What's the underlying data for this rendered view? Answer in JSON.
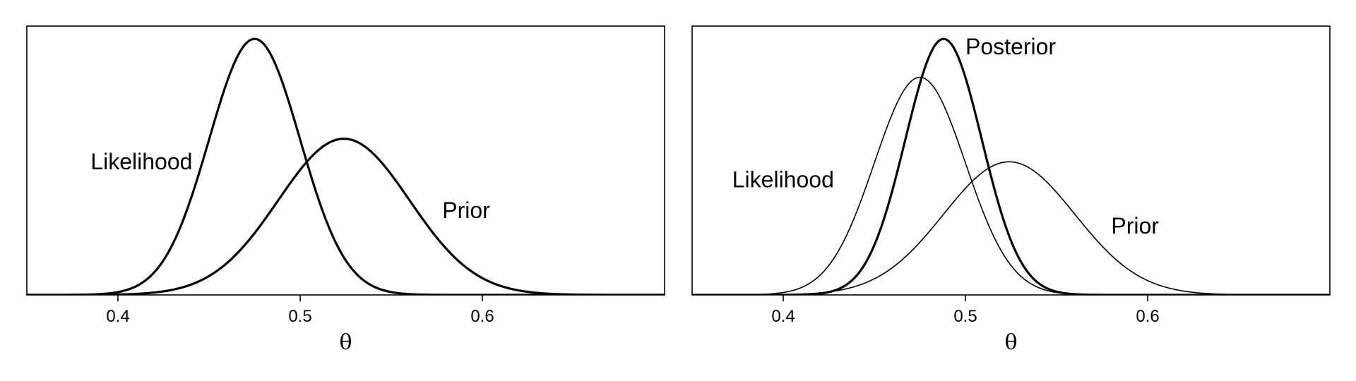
{
  "chart_data": [
    {
      "type": "line",
      "panel": "left",
      "xlabel": "θ",
      "ylabel": "",
      "xlim": [
        0.35,
        0.7
      ],
      "ylim": [
        0,
        1.05
      ],
      "xticks": [
        0.4,
        0.5,
        0.6
      ],
      "xtick_labels": [
        "0.4",
        "0.5",
        "0.6"
      ],
      "series": [
        {
          "name": "Likelihood",
          "distribution": "normal",
          "mean": 0.475,
          "sd": 0.025,
          "peak": 1.0,
          "line_weight": "thick"
        },
        {
          "name": "Prior",
          "distribution": "normal",
          "mean": 0.524,
          "sd": 0.036,
          "peak": 0.61,
          "line_weight": "thick"
        }
      ],
      "annotations": [
        {
          "text": "Likelihood",
          "x": 0.385,
          "y": 0.49
        },
        {
          "text": "Prior",
          "x": 0.578,
          "y": 0.3
        }
      ]
    },
    {
      "type": "line",
      "panel": "right",
      "xlabel": "θ",
      "ylabel": "",
      "xlim": [
        0.35,
        0.7
      ],
      "ylim": [
        0,
        1.05
      ],
      "xticks": [
        0.4,
        0.5,
        0.6
      ],
      "xtick_labels": [
        "0.4",
        "0.5",
        "0.6"
      ],
      "series": [
        {
          "name": "Likelihood",
          "distribution": "normal",
          "mean": 0.475,
          "sd": 0.025,
          "peak": 0.85,
          "line_weight": "thin"
        },
        {
          "name": "Prior",
          "distribution": "normal",
          "mean": 0.524,
          "sd": 0.036,
          "peak": 0.52,
          "line_weight": "thin"
        },
        {
          "name": "Posterior",
          "distribution": "normal",
          "mean": 0.488,
          "sd": 0.021,
          "peak": 1.0,
          "line_weight": "thick"
        }
      ],
      "annotations": [
        {
          "text": "Likelihood",
          "x": 0.372,
          "y": 0.42
        },
        {
          "text": "Prior",
          "x": 0.58,
          "y": 0.24
        },
        {
          "text": "Posterior",
          "x": 0.5,
          "y": 0.94
        }
      ]
    }
  ]
}
